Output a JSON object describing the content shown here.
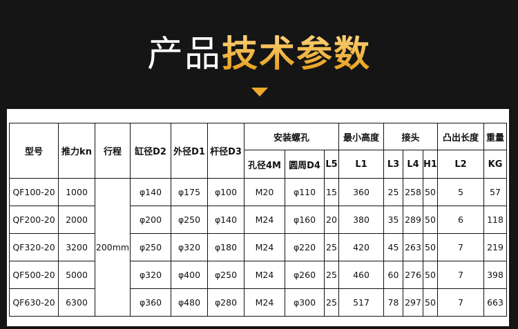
{
  "title": {
    "plain": "产品",
    "highlight": "技术参数"
  },
  "colors": {
    "accent": "#f0a92a",
    "background": "#151515"
  },
  "table": {
    "header1": {
      "model": "型号",
      "thrust": "推力kn",
      "stroke": "行程",
      "bore": "缸径D2",
      "outer": "外径D1",
      "rod": "杆径D3",
      "mount": "安装螺孔",
      "min_height": "最小高度",
      "joint": "接头",
      "protrude": "凸出长度",
      "weight": "重量"
    },
    "header2": {
      "hole": "孔径4M",
      "circle": "圆周D4",
      "l5": "L5",
      "l1": "L1",
      "l3": "L3",
      "l4": "L4",
      "h1": "H1",
      "l2": "L2",
      "kg": "KG"
    },
    "stroke_value": "200mm",
    "rows": [
      [
        "QF100-20",
        "1000",
        "φ140",
        "φ175",
        "φ100",
        "M20",
        "φ110",
        "15",
        "360",
        "25",
        "258",
        "50",
        "5",
        "57"
      ],
      [
        "QF200-20",
        "2000",
        "φ200",
        "φ250",
        "φ140",
        "M24",
        "φ160",
        "20",
        "380",
        "35",
        "289",
        "50",
        "6",
        "118"
      ],
      [
        "QF320-20",
        "3200",
        "φ250",
        "φ320",
        "φ180",
        "M24",
        "φ220",
        "25",
        "420",
        "45",
        "263",
        "50",
        "7",
        "219"
      ],
      [
        "QF500-20",
        "5000",
        "φ320",
        "φ400",
        "φ250",
        "M24",
        "φ260",
        "25",
        "460",
        "60",
        "276",
        "50",
        "7",
        "398"
      ],
      [
        "QF630-20",
        "6300",
        "φ360",
        "φ480",
        "φ280",
        "M24",
        "φ300",
        "25",
        "517",
        "78",
        "297",
        "50",
        "7",
        "663"
      ]
    ]
  }
}
